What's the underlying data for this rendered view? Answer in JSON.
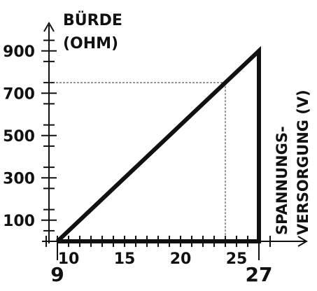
{
  "chart_data": {
    "type": "line",
    "title": "",
    "ylabel": [
      "BÜRDE",
      "(OHM)"
    ],
    "xlabel": [
      "SPANNUNGS-",
      "VERSORGUNG (V)"
    ],
    "xlim": [
      7,
      30
    ],
    "ylim": [
      0,
      1000
    ],
    "x_ticks": [
      10,
      15,
      20,
      25
    ],
    "x_tick_labels": [
      "10",
      "15",
      "20",
      "25"
    ],
    "x_extra_labels": [
      "9",
      "27"
    ],
    "y_ticks": [
      100,
      300,
      500,
      700,
      900
    ],
    "y_tick_labels": [
      "100",
      "300",
      "500",
      "700",
      "900"
    ],
    "series": [
      {
        "values": [
          [
            9,
            0
          ],
          [
            27,
            900
          ],
          [
            27,
            0
          ],
          [
            9,
            0
          ]
        ]
      }
    ],
    "reference_point": {
      "x": 24,
      "y": 750
    },
    "grid": false,
    "legend": "none",
    "colors": {
      "line": "#111111",
      "reference": "#333333"
    }
  }
}
